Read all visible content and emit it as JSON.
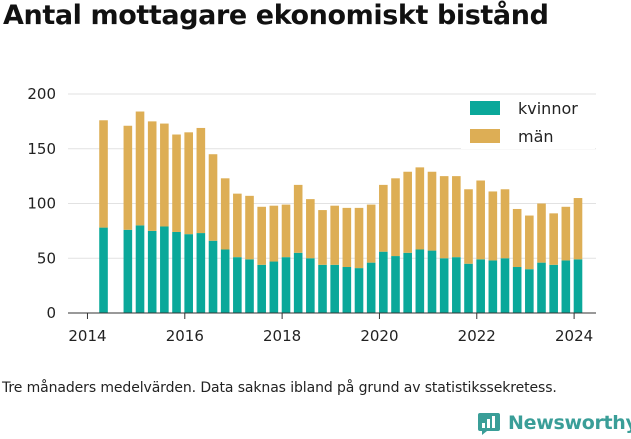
{
  "title": "Antal mottagare ekonomiskt bistånd",
  "note": "Tre månaders medelvärden. Data saknas ibland på grund av statistikssekretess.",
  "brand": "Newsworthy",
  "colors": {
    "kvinnor": "#0aa89a",
    "man": "#ddae55",
    "grid": "#e2e2e2",
    "axis": "#333333",
    "brand": "#3a9e98"
  },
  "chart_data": {
    "type": "bar",
    "stacked": true,
    "title": "Antal mottagare ekonomiskt bistånd",
    "xlabel": "",
    "ylabel": "",
    "ylim": [
      0,
      200
    ],
    "yticks": [
      0,
      50,
      100,
      150,
      200
    ],
    "xlim": [
      2013.6,
      2024.45
    ],
    "xticks": [
      2014,
      2016,
      2018,
      2020,
      2022,
      2024
    ],
    "grid": true,
    "legend_position": "top-right",
    "x": [
      2014.33,
      2014.83,
      2015.08,
      2015.33,
      2015.58,
      2015.83,
      2016.08,
      2016.33,
      2016.58,
      2016.83,
      2017.08,
      2017.33,
      2017.58,
      2017.83,
      2018.08,
      2018.33,
      2018.58,
      2018.83,
      2019.08,
      2019.33,
      2019.58,
      2019.83,
      2020.08,
      2020.33,
      2020.58,
      2020.83,
      2021.08,
      2021.33,
      2021.58,
      2021.83,
      2022.08,
      2022.33,
      2022.58,
      2022.83,
      2023.08,
      2023.33,
      2023.58,
      2023.83,
      2024.08
    ],
    "series": [
      {
        "name": "kvinnor",
        "values": [
          78,
          76,
          80,
          75,
          79,
          74,
          72,
          73,
          66,
          58,
          51,
          49,
          44,
          47,
          51,
          55,
          50,
          44,
          44,
          42,
          41,
          46,
          56,
          52,
          55,
          58,
          57,
          50,
          51,
          45,
          49,
          48,
          50,
          42,
          40,
          46,
          44,
          48,
          49
        ]
      },
      {
        "name": "män",
        "values": [
          98,
          95,
          104,
          100,
          94,
          89,
          93,
          96,
          79,
          65,
          58,
          58,
          53,
          51,
          48,
          62,
          54,
          50,
          54,
          54,
          55,
          53,
          61,
          71,
          74,
          75,
          72,
          75,
          74,
          68,
          72,
          63,
          63,
          53,
          49,
          54,
          47,
          49,
          56
        ]
      }
    ]
  }
}
